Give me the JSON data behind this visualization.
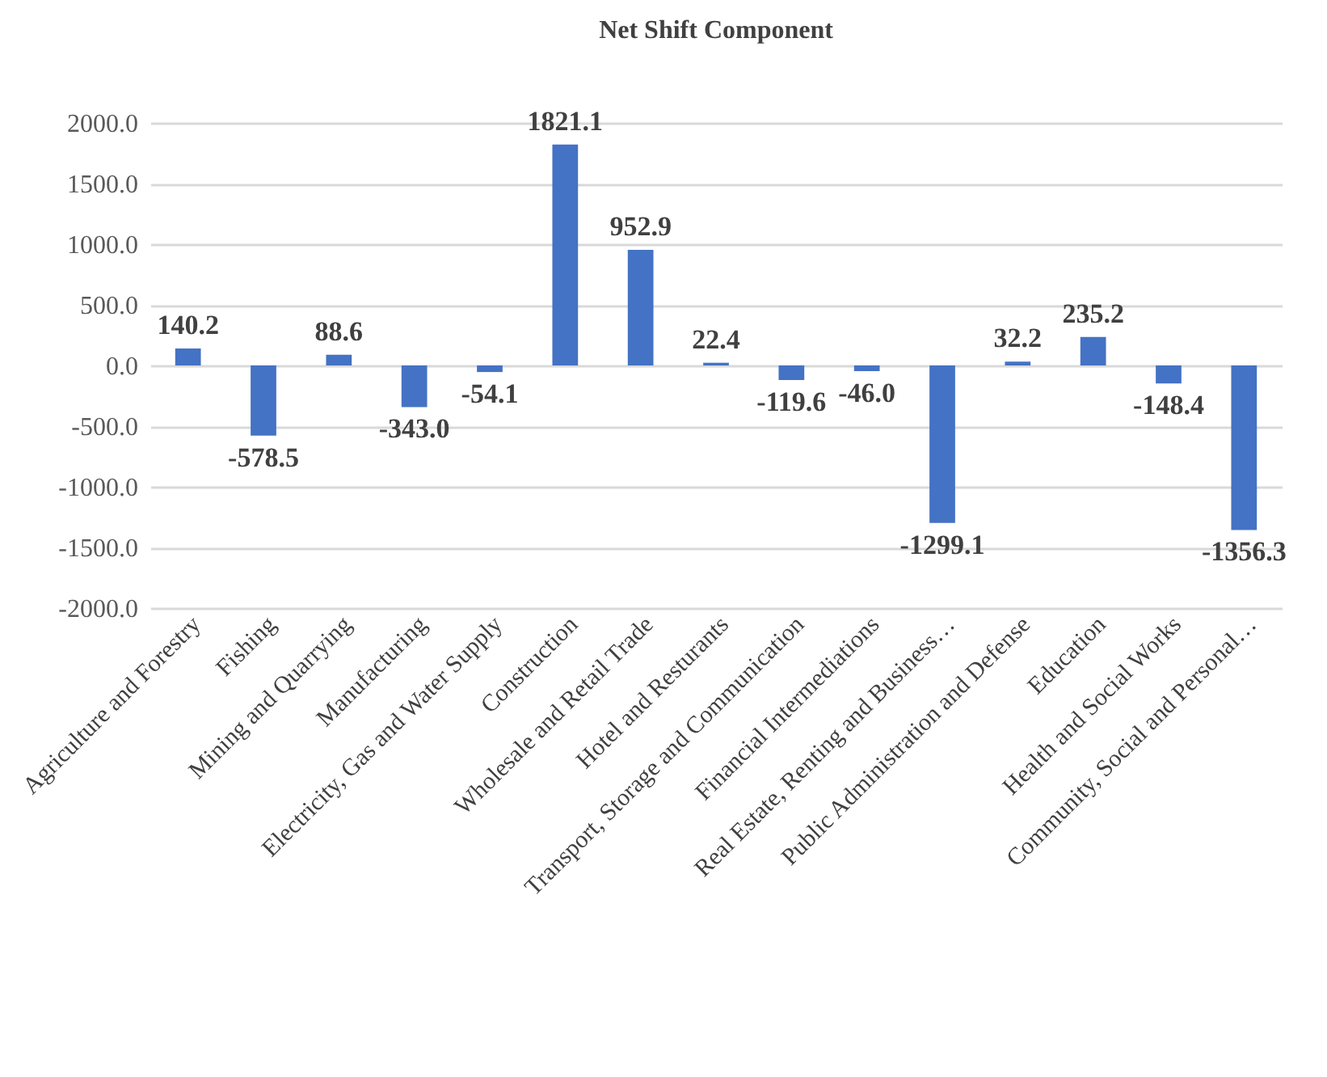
{
  "chart_data": {
    "type": "bar",
    "title": "Net Shift Component",
    "categories": [
      "Agriculture and Forestry",
      "Fishing",
      "Mining and Quarrying",
      "Manufacturing",
      "Electricity, Gas and Water Supply",
      "Construction",
      "Wholesale and Retail Trade",
      "Hotel and Resturants",
      "Transport, Storage and Communication",
      "Financial Intermediations",
      "Real Estate, Renting and Business…",
      "Public Administration and Defense",
      "Education",
      "Health and Social Works",
      "Community, Social and Personal…"
    ],
    "values": [
      140.2,
      -578.5,
      88.6,
      -343.0,
      -54.1,
      1821.1,
      952.9,
      22.4,
      -119.6,
      -46.0,
      -1299.1,
      32.2,
      235.2,
      -148.4,
      -1356.3
    ],
    "value_labels": [
      "140.2",
      "-578.5",
      "88.6",
      "-343.0",
      "-54.1",
      "1821.1",
      "952.9",
      "22.4",
      "-119.6",
      "-46.0",
      "-1299.1",
      "32.2",
      "235.2",
      "-148.4",
      "-1356.3"
    ],
    "color": "#4472c4",
    "ylim": [
      -2000,
      2000
    ],
    "yticks": [
      {
        "value": -2000,
        "label": "-2000.0"
      },
      {
        "value": -1500,
        "label": "-1500.0"
      },
      {
        "value": -1000,
        "label": "-1000.0"
      },
      {
        "value": -500,
        "label": "-500.0"
      },
      {
        "value": 0,
        "label": "0.0"
      },
      {
        "value": 500,
        "label": "500.0"
      },
      {
        "value": 1000,
        "label": "1000.0"
      },
      {
        "value": 1500,
        "label": "1500.0"
      },
      {
        "value": 2000,
        "label": "2000.0"
      }
    ],
    "grid": true
  }
}
